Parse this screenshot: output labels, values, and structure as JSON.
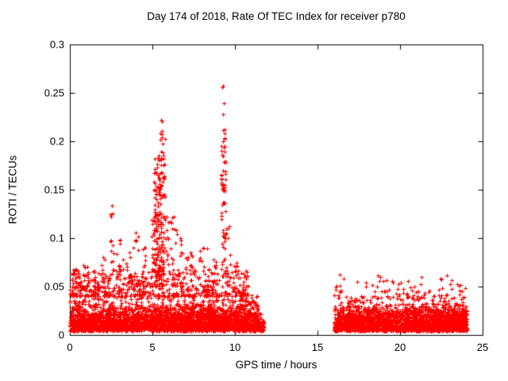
{
  "chart_data": {
    "type": "scatter",
    "title": "Day 174 of 2018, Rate Of TEC Index for receiver p780",
    "xlabel": "GPS time / hours",
    "ylabel": "ROTI / TECUs",
    "xlim": [
      0,
      25
    ],
    "ylim": [
      0,
      0.3
    ],
    "xticks": [
      {
        "v": 0,
        "label": "0"
      },
      {
        "v": 5,
        "label": "5"
      },
      {
        "v": 10,
        "label": "10"
      },
      {
        "v": 15,
        "label": "15"
      },
      {
        "v": 20,
        "label": "20"
      },
      {
        "v": 25,
        "label": "25"
      }
    ],
    "yticks": [
      {
        "v": 0,
        "label": "0"
      },
      {
        "v": 0.05,
        "label": "0.05"
      },
      {
        "v": 0.1,
        "label": "0.1"
      },
      {
        "v": 0.15,
        "label": "0.15"
      },
      {
        "v": 0.2,
        "label": "0.2"
      },
      {
        "v": 0.25,
        "label": "0.25"
      },
      {
        "v": 0.3,
        "label": "0.3"
      }
    ],
    "grid": false,
    "legend": "none",
    "marker": "plus",
    "marker_color": "#ff0000",
    "axis_color": "#000000",
    "background_color": "#ffffff",
    "data_gap_hours": [
      11.75,
      16.0
    ],
    "bands": [
      {
        "x0": 0.0,
        "x1": 11.4,
        "count": 3200,
        "y0": 0.004,
        "scale": 0.014,
        "ymax": 0.052
      },
      {
        "x0": 11.4,
        "x1": 11.75,
        "count": 70,
        "y0": 0.004,
        "scale": 0.008,
        "ymax": 0.032
      },
      {
        "x0": 16.0,
        "x1": 24.05,
        "count": 2400,
        "y0": 0.004,
        "scale": 0.013,
        "ymax": 0.05
      }
    ],
    "mid_scatter": [
      {
        "x0": 0.0,
        "x1": 10.8,
        "count": 420,
        "ylo": 0.04,
        "yhi": 0.068,
        "p": 2
      },
      {
        "x0": 16.0,
        "x1": 24.05,
        "count": 90,
        "ylo": 0.038,
        "yhi": 0.063,
        "p": 2
      }
    ],
    "spikes": [
      {
        "x": 0.35,
        "spread": 0.25,
        "base": 0.04,
        "ymax": 0.068,
        "count": 30,
        "p": 1.5
      },
      {
        "x": 0.8,
        "spread": 0.3,
        "base": 0.04,
        "ymax": 0.072,
        "count": 25,
        "p": 1.5
      },
      {
        "x": 1.5,
        "spread": 0.25,
        "base": 0.04,
        "ymax": 0.065,
        "count": 18,
        "p": 1.5
      },
      {
        "x": 2.0,
        "spread": 0.15,
        "base": 0.045,
        "ymax": 0.08,
        "count": 10,
        "p": 1.5
      },
      {
        "x": 2.55,
        "spread": 0.1,
        "base": 0.05,
        "ymax": 0.134,
        "count": 12,
        "p": 1.3
      },
      {
        "x": 3.05,
        "spread": 0.2,
        "base": 0.045,
        "ymax": 0.098,
        "count": 16,
        "p": 1.5
      },
      {
        "x": 3.6,
        "spread": 0.2,
        "base": 0.045,
        "ymax": 0.085,
        "count": 14,
        "p": 1.5
      },
      {
        "x": 4.0,
        "spread": 0.18,
        "base": 0.05,
        "ymax": 0.106,
        "count": 14,
        "p": 1.5
      },
      {
        "x": 4.5,
        "spread": 0.2,
        "base": 0.045,
        "ymax": 0.09,
        "count": 14,
        "p": 1.5
      },
      {
        "x": 5.45,
        "spread": 0.55,
        "base": 0.05,
        "ymax": 0.125,
        "count": 90,
        "p": 1.4
      },
      {
        "x": 5.4,
        "spread": 0.3,
        "base": 0.06,
        "ymax": 0.185,
        "count": 110,
        "p": 1.2
      },
      {
        "x": 5.55,
        "spread": 0.22,
        "base": 0.14,
        "ymax": 0.222,
        "count": 30,
        "p": 1.4
      },
      {
        "x": 6.3,
        "spread": 0.2,
        "base": 0.05,
        "ymax": 0.122,
        "count": 22,
        "p": 1.5
      },
      {
        "x": 6.7,
        "spread": 0.15,
        "base": 0.05,
        "ymax": 0.1,
        "count": 14,
        "p": 1.5
      },
      {
        "x": 7.3,
        "spread": 0.3,
        "base": 0.045,
        "ymax": 0.085,
        "count": 20,
        "p": 1.5
      },
      {
        "x": 8.1,
        "spread": 0.3,
        "base": 0.045,
        "ymax": 0.09,
        "count": 22,
        "p": 1.5
      },
      {
        "x": 8.7,
        "spread": 0.2,
        "base": 0.045,
        "ymax": 0.078,
        "count": 14,
        "p": 1.5
      },
      {
        "x": 9.3,
        "spread": 0.14,
        "base": 0.06,
        "ymax": 0.2,
        "count": 60,
        "p": 1.1
      },
      {
        "x": 9.3,
        "spread": 0.07,
        "base": 0.2,
        "ymax": 0.257,
        "count": 8,
        "p": 1.2
      },
      {
        "x": 9.65,
        "spread": 0.18,
        "base": 0.05,
        "ymax": 0.112,
        "count": 18,
        "p": 1.4
      },
      {
        "x": 10.1,
        "spread": 0.2,
        "base": 0.04,
        "ymax": 0.075,
        "count": 14,
        "p": 1.5
      },
      {
        "x": 10.6,
        "spread": 0.2,
        "base": 0.035,
        "ymax": 0.06,
        "count": 10,
        "p": 1.5
      }
    ],
    "notable_peaks": [
      {
        "x": 9.3,
        "y": 0.257
      },
      {
        "x": 5.55,
        "y": 0.222
      },
      {
        "x": 2.55,
        "y": 0.134
      }
    ]
  }
}
